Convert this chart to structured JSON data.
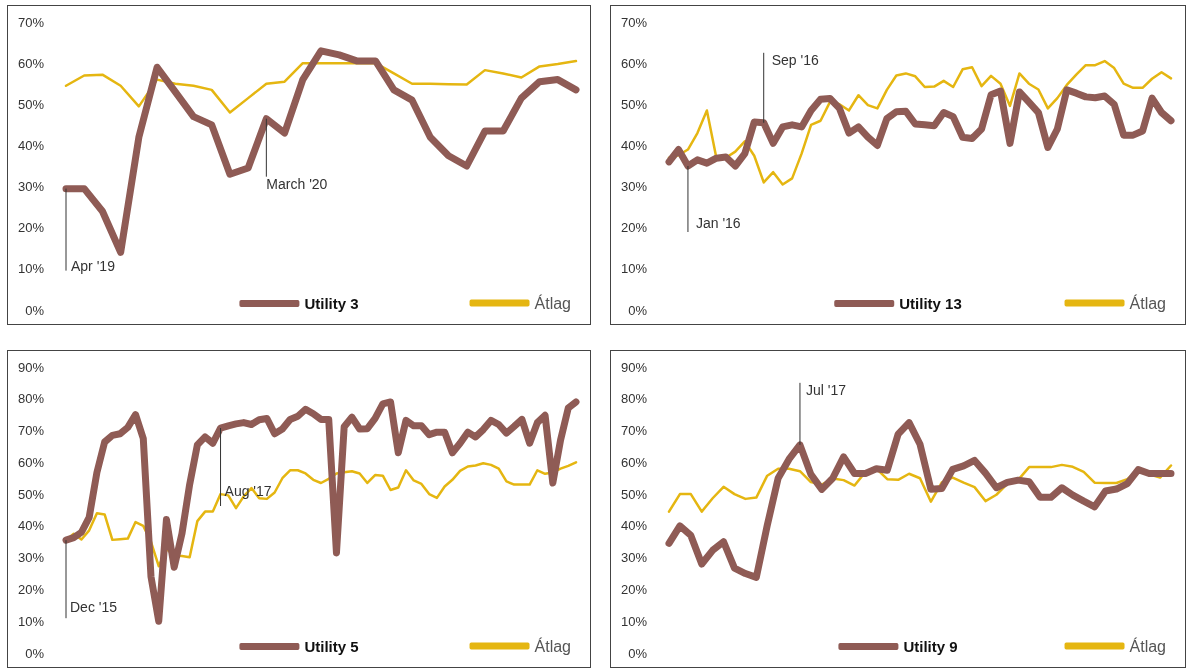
{
  "chart_data": [
    {
      "type": "line",
      "categories": [
        null,
        null,
        null,
        null,
        null,
        null,
        null,
        null,
        null,
        null,
        null,
        null,
        null,
        null,
        null,
        null,
        null,
        null,
        null,
        null,
        null,
        null,
        null,
        null,
        null,
        null,
        null,
        null,
        null
      ],
      "series": [
        {
          "name": "Utility 3",
          "color": "#8f5b55",
          "values": [
            29.5,
            29.5,
            24,
            14,
            42,
            59,
            53,
            47,
            45,
            33,
            34.5,
            46.5,
            43,
            56,
            63,
            62,
            60.5,
            60.5,
            53.5,
            51,
            42,
            37.5,
            35,
            43.5,
            43.5,
            51.5,
            55.5,
            56,
            53.5
          ]
        },
        {
          "name": "Átlag",
          "color": "#e5b611",
          "values": [
            54.5,
            57,
            57.2,
            54.5,
            49.5,
            56,
            55,
            54.5,
            53.5,
            48,
            51.5,
            55,
            55.5,
            60,
            60,
            60,
            60,
            60,
            57.5,
            55,
            55,
            54.9,
            54.8,
            58.3,
            57.5,
            56.5,
            59.2,
            59.8,
            60.5
          ]
        }
      ],
      "ylim": [
        0,
        70
      ],
      "yticks": [
        {
          "value": 0,
          "label": "0%"
        },
        {
          "value": 10,
          "label": "10%"
        },
        {
          "value": 20,
          "label": "20%"
        },
        {
          "value": 30,
          "label": "30%"
        },
        {
          "value": 40,
          "label": "40%"
        },
        {
          "value": 50,
          "label": "50%"
        },
        {
          "value": 60,
          "label": "60%"
        },
        {
          "value": 70,
          "label": "70%"
        }
      ],
      "annotations": [
        "Apr '19",
        "March '20"
      ],
      "grid": false,
      "legend": "bottom",
      "tick_labels": "y",
      "marker": "none"
    },
    {
      "type": "line",
      "categories": [
        null,
        null,
        null,
        null,
        null,
        null,
        null,
        null,
        null,
        null,
        null,
        null,
        null,
        null,
        null,
        null,
        null,
        null,
        null,
        null,
        null,
        null,
        null,
        null,
        null,
        null,
        null,
        null,
        null,
        null,
        null,
        null,
        null,
        null,
        null,
        null,
        null,
        null,
        null,
        null,
        null,
        null,
        null,
        null,
        null,
        null,
        null,
        null,
        null,
        null,
        null,
        null,
        null,
        null
      ],
      "series": [
        {
          "name": "Utility 13",
          "color": "#8f5b55",
          "values": [
            36,
            39,
            35,
            36.5,
            35.7,
            36.9,
            37.2,
            35,
            38,
            45.7,
            45.5,
            40.5,
            44.5,
            45,
            44.5,
            48.5,
            51.2,
            51.4,
            49,
            43,
            44.5,
            42,
            40,
            46.5,
            48.2,
            48.3,
            45.2,
            45,
            44.8,
            48,
            47,
            42,
            41.7,
            44,
            52.3,
            53.2,
            40.5,
            53,
            50.5,
            48,
            39.5,
            44,
            53.5,
            52.7,
            51.8,
            51.6,
            52,
            50,
            42.5,
            42.5,
            43.5,
            51.5,
            48,
            46
          ]
        },
        {
          "name": "Átlag",
          "color": "#e5b611",
          "values": [
            37,
            37.6,
            39,
            43,
            48.5,
            37,
            37,
            38.5,
            41,
            37.5,
            31,
            33.5,
            30.5,
            32,
            38,
            45,
            46,
            50.6,
            50,
            48.5,
            52.2,
            49.8,
            49,
            53.5,
            57,
            57.5,
            56.8,
            54.2,
            54.3,
            55.7,
            54.2,
            58.5,
            59,
            54.4,
            56.9,
            55,
            49.6,
            57.5,
            55,
            53.6,
            49,
            51.5,
            54.7,
            57.2,
            59.5,
            59.5,
            60.5,
            58.8,
            55,
            54,
            54,
            56.2,
            57.8,
            56.3
          ]
        }
      ],
      "ylim": [
        0,
        70
      ],
      "yticks": [
        {
          "value": 0,
          "label": "0%"
        },
        {
          "value": 10,
          "label": "10%"
        },
        {
          "value": 20,
          "label": "20%"
        },
        {
          "value": 30,
          "label": "30%"
        },
        {
          "value": 40,
          "label": "40%"
        },
        {
          "value": 50,
          "label": "50%"
        },
        {
          "value": 60,
          "label": "60%"
        },
        {
          "value": 70,
          "label": "70%"
        }
      ],
      "annotations": [
        "Sep '16",
        "Jan '16"
      ],
      "grid": false,
      "legend": "bottom",
      "tick_labels": "y",
      "marker": "none"
    },
    {
      "type": "line",
      "categories": [
        null,
        null,
        null,
        null,
        null,
        null,
        null,
        null,
        null,
        null,
        null,
        null,
        null,
        null,
        null,
        null,
        null,
        null,
        null,
        null,
        null,
        null,
        null,
        null,
        null,
        null,
        null,
        null,
        null,
        null,
        null,
        null,
        null,
        null,
        null,
        null,
        null,
        null,
        null,
        null,
        null,
        null,
        null,
        null,
        null,
        null,
        null,
        null,
        null,
        null,
        null,
        null,
        null,
        null,
        null,
        null,
        null,
        null,
        null,
        null,
        null,
        null,
        null,
        null,
        null,
        null,
        null
      ],
      "series": [
        {
          "name": "Utility 5",
          "color": "#8f5b55",
          "values": [
            35.5,
            36.3,
            38,
            42.7,
            56.8,
            66.4,
            68.5,
            69,
            71,
            75,
            67.5,
            24,
            10,
            42,
            27,
            37.5,
            53,
            65.5,
            68,
            66,
            70.8,
            71.5,
            72.1,
            72.5,
            71.9,
            73.4,
            73.8,
            69,
            70.5,
            73.5,
            74.5,
            76.7,
            75.3,
            73.5,
            73.5,
            31.5,
            71.2,
            74.2,
            70.5,
            70.6,
            73.8,
            78.4,
            79,
            63,
            73.2,
            71.5,
            71.5,
            68.7,
            69.5,
            69.5,
            63,
            66,
            69.5,
            68,
            70.3,
            73.2,
            71.9,
            69.2,
            71.3,
            73.5,
            66,
            72.5,
            74.8,
            53.5,
            67,
            77.1,
            79
          ]
        },
        {
          "name": "Átlag",
          "color": "#e5b611",
          "values": [
            35.5,
            37.5,
            35.7,
            38.6,
            44,
            43.6,
            35.6,
            35.8,
            36,
            41.2,
            40,
            35,
            27.3,
            32.8,
            30.6,
            30.5,
            30.1,
            41.5,
            44.5,
            44.5,
            50,
            49.6,
            45.6,
            49.3,
            51.9,
            48.7,
            48.5,
            50.5,
            55,
            57.5,
            57.5,
            56.5,
            54.5,
            53.5,
            54.8,
            56.5,
            56.9,
            57.2,
            56.5,
            53.5,
            56,
            55.8,
            51.3,
            52.1,
            57.5,
            54.3,
            53.2,
            50,
            48.8,
            52.4,
            54.5,
            57.3,
            58.7,
            59,
            59.7,
            59.2,
            58,
            54,
            53,
            53,
            53,
            57.5,
            56.4,
            56.8,
            58,
            58.9,
            60
          ]
        }
      ],
      "ylim": [
        0,
        90
      ],
      "yticks": [
        {
          "value": 0,
          "label": "0%"
        },
        {
          "value": 10,
          "label": "10%"
        },
        {
          "value": 20,
          "label": "20%"
        },
        {
          "value": 30,
          "label": "30%"
        },
        {
          "value": 40,
          "label": "40%"
        },
        {
          "value": 50,
          "label": "50%"
        },
        {
          "value": 60,
          "label": "60%"
        },
        {
          "value": 70,
          "label": "70%"
        },
        {
          "value": 80,
          "label": "80%"
        },
        {
          "value": 90,
          "label": "90%"
        }
      ],
      "annotations": [
        "Dec '15",
        "Aug '17"
      ],
      "grid": false,
      "legend": "bottom",
      "tick_labels": "y",
      "marker": "none"
    },
    {
      "type": "line",
      "categories": [
        null,
        null,
        null,
        null,
        null,
        null,
        null,
        null,
        null,
        null,
        null,
        null,
        null,
        null,
        null,
        null,
        null,
        null,
        null,
        null,
        null,
        null,
        null,
        null,
        null,
        null,
        null,
        null,
        null,
        null,
        null,
        null,
        null,
        null,
        null,
        null,
        null,
        null,
        null,
        null,
        null,
        null,
        null,
        null,
        null,
        null,
        null
      ],
      "series": [
        {
          "name": "Utility 9",
          "color": "#8f5b55",
          "values": [
            34.5,
            40,
            37,
            28,
            32.3,
            35,
            26.7,
            25,
            23.8,
            40.1,
            55,
            61,
            65.5,
            56.2,
            51.5,
            55,
            61.7,
            56.5,
            56.5,
            58,
            57.5,
            68.9,
            72.5,
            65.7,
            51.5,
            51.8,
            57.8,
            58.9,
            60.6,
            56.6,
            52,
            53.7,
            54.4,
            53.9,
            49,
            49,
            52,
            49.7,
            47.8,
            46,
            51,
            51.6,
            53.3,
            57.7,
            56.5,
            56.5,
            56.5
          ]
        },
        {
          "name": "Átlag",
          "color": "#e5b611",
          "values": [
            44.5,
            50,
            50,
            44.5,
            48.7,
            52.3,
            50,
            48.5,
            48.9,
            55.8,
            58,
            58,
            57.2,
            53.8,
            53,
            54.9,
            54.4,
            52.7,
            57,
            58,
            54.7,
            54.5,
            56.4,
            55,
            47.6,
            53.7,
            55.2,
            53.6,
            52.2,
            47.8,
            49.8,
            53.2,
            54.5,
            58.5,
            58.5,
            58.5,
            59.2,
            58.6,
            57,
            53.6,
            53.5,
            53.5,
            54.7,
            57.7,
            56.2,
            55.2,
            59
          ]
        }
      ],
      "ylim": [
        0,
        90
      ],
      "yticks": [
        {
          "value": 0,
          "label": "0%"
        },
        {
          "value": 10,
          "label": "10%"
        },
        {
          "value": 20,
          "label": "20%"
        },
        {
          "value": 30,
          "label": "30%"
        },
        {
          "value": 40,
          "label": "40%"
        },
        {
          "value": 50,
          "label": "50%"
        },
        {
          "value": 60,
          "label": "60%"
        },
        {
          "value": 70,
          "label": "70%"
        },
        {
          "value": 80,
          "label": "80%"
        },
        {
          "value": 90,
          "label": "90%"
        }
      ],
      "annotations": [
        "Jul '17"
      ],
      "grid": false,
      "legend": "bottom",
      "tick_labels": "y",
      "marker": "none"
    }
  ]
}
